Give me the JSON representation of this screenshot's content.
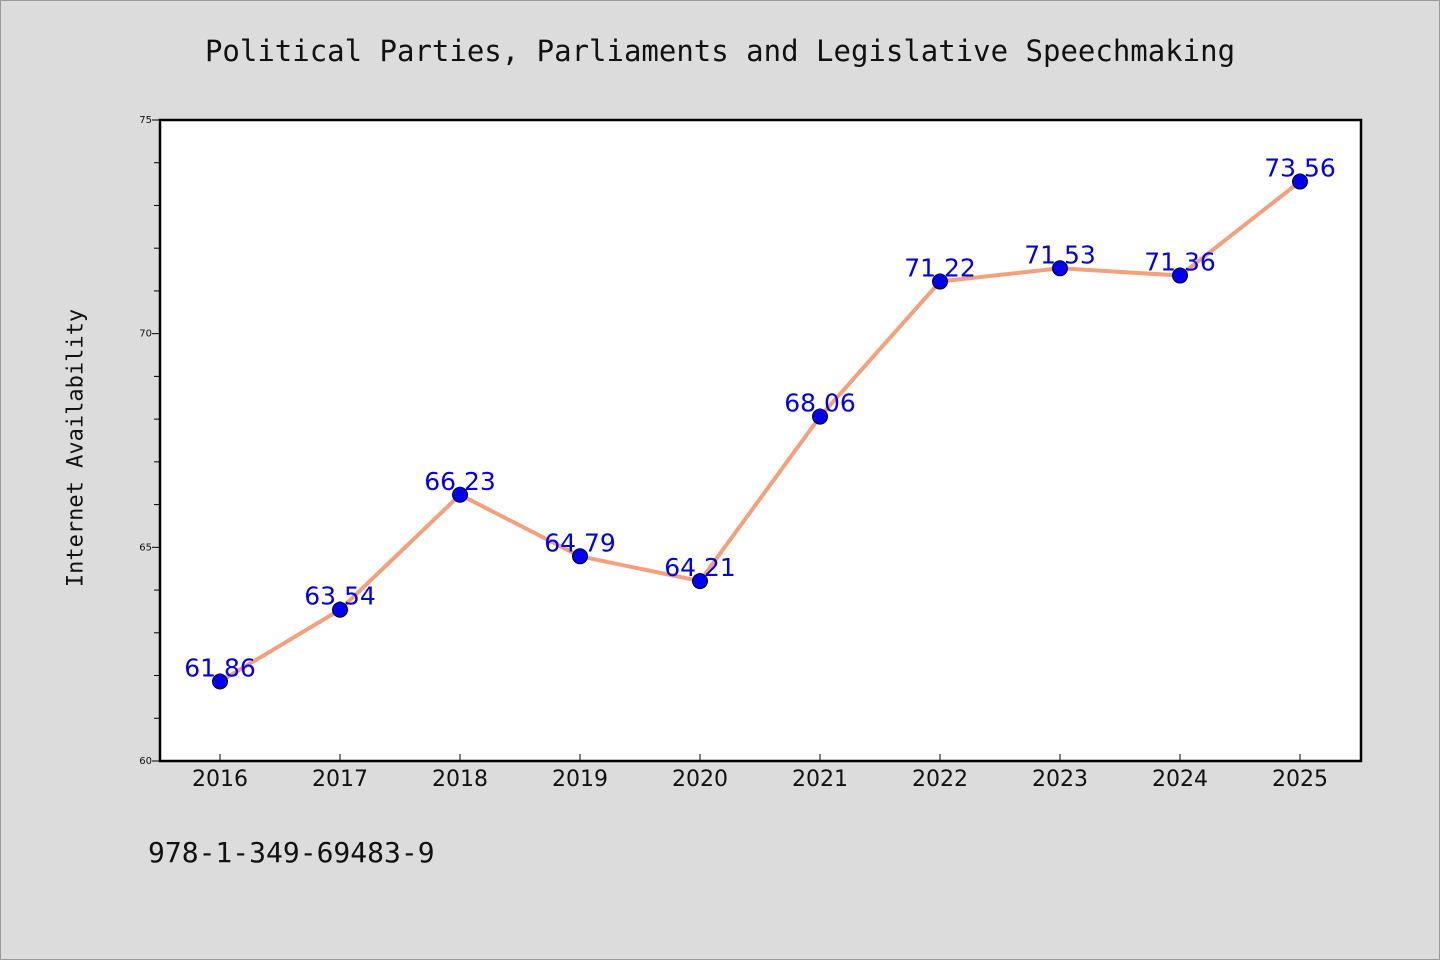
{
  "chart_data": {
    "type": "line",
    "title": "Political Parties, Parliaments and Legislative Speechmaking",
    "xlabel": "",
    "ylabel": "Internet Availability",
    "categories": [
      "2016",
      "2017",
      "2018",
      "2019",
      "2020",
      "2021",
      "2022",
      "2023",
      "2024",
      "2025"
    ],
    "values": [
      61.86,
      63.54,
      66.23,
      64.79,
      64.21,
      68.06,
      71.22,
      71.53,
      71.36,
      73.56
    ],
    "data_labels": [
      "61.86",
      "63.54",
      "66.23",
      "64.79",
      "64.21",
      "68.06",
      "71.22",
      "71.53",
      "71.36",
      "73.56"
    ],
    "ylim": [
      60,
      75
    ],
    "yticks": [
      "60",
      "65",
      "70",
      "75"
    ],
    "grid": false,
    "legend": "none",
    "line_color": "#f4a07c",
    "marker_color": "#0000ee",
    "label_color": "#0000ee"
  },
  "footer": {
    "isbn": "978-1-349-69483-9"
  }
}
